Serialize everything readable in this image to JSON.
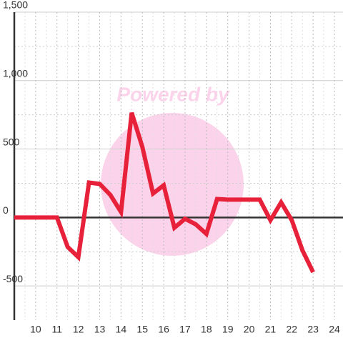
{
  "chart_data": {
    "type": "line",
    "watermark": "Powered by",
    "x": [
      9,
      9.5,
      10,
      10.5,
      11,
      11.5,
      12,
      12.5,
      13,
      13.5,
      14,
      14.5,
      15,
      15.5,
      16,
      16.5,
      17,
      17.5,
      18,
      18.5,
      19,
      19.5,
      20,
      20.5,
      21,
      21.5,
      22,
      22.5,
      23
    ],
    "series": [
      {
        "color": "#e8213a",
        "values": [
          0,
          0,
          0,
          0,
          0,
          -215,
          -290,
          255,
          245,
          165,
          40,
          765,
          515,
          175,
          235,
          -75,
          -10,
          -50,
          -120,
          135,
          130,
          130,
          130,
          130,
          -20,
          110,
          -20,
          -240,
          -400
        ]
      }
    ],
    "xlim": [
      9,
      24.4
    ],
    "xticks": [
      10,
      11,
      12,
      13,
      14,
      15,
      16,
      17,
      18,
      19,
      20,
      21,
      22,
      23,
      24
    ],
    "ylim": [
      -750,
      1500
    ],
    "yticks": [
      {
        "value": 1500,
        "label": "1,500"
      },
      {
        "value": 1000,
        "label": "1,000"
      },
      500,
      0,
      -500
    ],
    "grid": true
  }
}
